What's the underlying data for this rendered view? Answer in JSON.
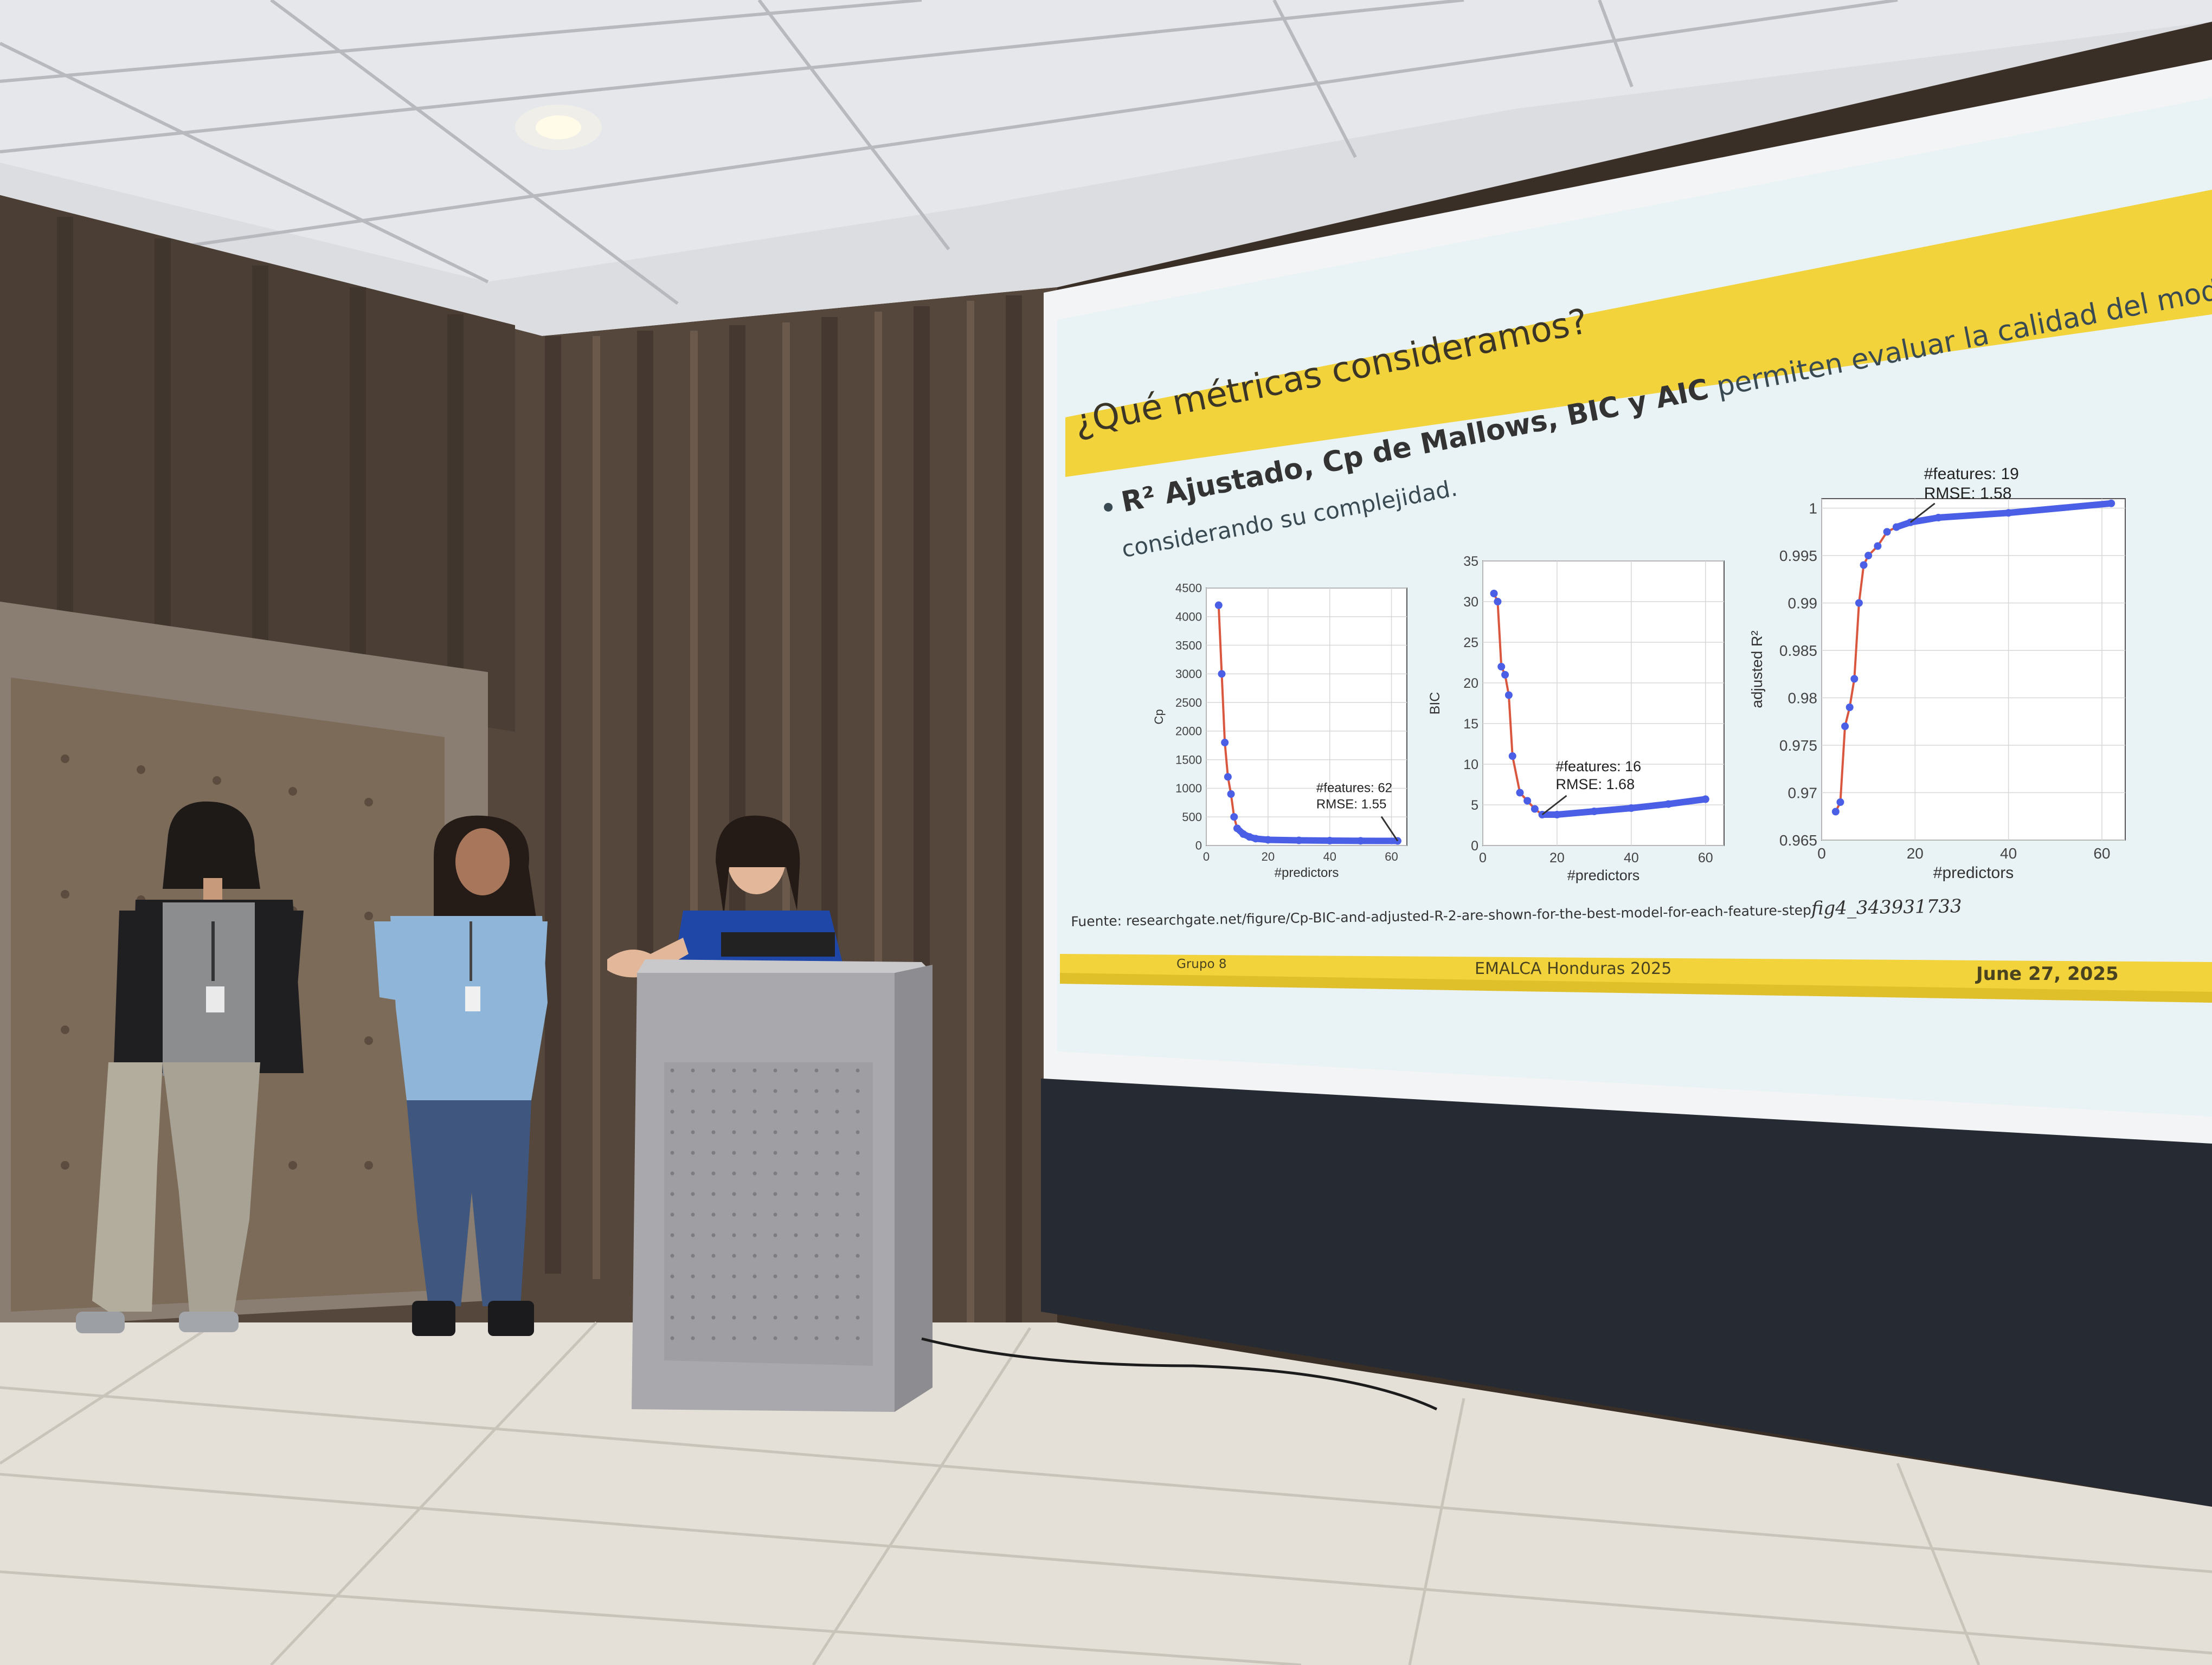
{
  "slide": {
    "title": "¿Qué métricas consideramos?",
    "bullet_bold": "R² Ajustado, Cp de Mallows, BIC y AIC",
    "bullet_rest": "permiten evaluar la calidad del modelo",
    "bullet_line2": "considerando su complejidad.",
    "source": "Fuente: researchgate.net/figure/Cp-BIC-and-adjusted-R-2-are-shown-for-the-best-model-for-each-feature-step",
    "source_suffix": "fig4_343931733",
    "footer_left": "Grupo 8",
    "footer_center": "EMALCA Honduras 2025",
    "footer_right": "June 27, 2025",
    "colors": {
      "header_yellow": "#f2d33b",
      "slide_bg": "#e6f0f2",
      "curve_red": "#d9573f",
      "marker_blue": "#4b5fe6"
    }
  },
  "chart_data": [
    {
      "type": "line",
      "xlabel": "#predictors",
      "ylabel": "Cp",
      "xticks": [
        "0",
        "20",
        "40",
        "60"
      ],
      "yticks": [
        "0",
        "500",
        "1000",
        "1500",
        "2000",
        "2500",
        "3000",
        "3500",
        "4000",
        "4500"
      ],
      "xlim": [
        0,
        65
      ],
      "ylim": [
        0,
        4500
      ],
      "x": [
        4,
        5,
        6,
        7,
        8,
        9,
        10,
        12,
        14,
        16,
        20,
        30,
        40,
        50,
        62
      ],
      "y": [
        4200,
        3000,
        1800,
        1200,
        900,
        500,
        300,
        200,
        150,
        120,
        100,
        90,
        85,
        82,
        80
      ],
      "annotation": {
        "lines": [
          "#features: 62",
          "RMSE: 1.55"
        ],
        "at": [
          62,
          80
        ]
      }
    },
    {
      "type": "line",
      "xlabel": "#predictors",
      "ylabel": "BIC",
      "xticks": [
        "0",
        "20",
        "40",
        "60"
      ],
      "yticks": [
        "0",
        "5",
        "10",
        "15",
        "20",
        "25",
        "30",
        "35"
      ],
      "xlim": [
        0,
        65
      ],
      "ylim": [
        0,
        35
      ],
      "x": [
        3,
        4,
        5,
        6,
        7,
        8,
        10,
        12,
        14,
        16,
        20,
        30,
        40,
        50,
        60
      ],
      "y": [
        31,
        30,
        22,
        21,
        18.5,
        11,
        6.5,
        5.5,
        4.5,
        3.8,
        3.8,
        4.2,
        4.6,
        5.1,
        5.7
      ],
      "annotation": {
        "lines": [
          "#features: 16",
          "RMSE: 1.68"
        ],
        "at": [
          16,
          3.8
        ]
      }
    },
    {
      "type": "line",
      "xlabel": "#predictors",
      "ylabel": "adjusted R²",
      "xticks": [
        "0",
        "20",
        "40",
        "60"
      ],
      "yticks": [
        "0.965",
        "0.97",
        "0.975",
        "0.98",
        "0.985",
        "0.99",
        "0.995",
        "1"
      ],
      "xlim": [
        0,
        65
      ],
      "ylim": [
        0.965,
        1.001
      ],
      "x": [
        3,
        4,
        5,
        6,
        7,
        8,
        9,
        10,
        12,
        14,
        16,
        19,
        25,
        40,
        62
      ],
      "y": [
        0.968,
        0.969,
        0.977,
        0.979,
        0.982,
        0.99,
        0.994,
        0.995,
        0.996,
        0.9975,
        0.998,
        0.9985,
        0.999,
        0.9995,
        1.0005
      ],
      "annotation": {
        "lines": [
          "#features: 19",
          "RMSE: 1.58"
        ],
        "at": [
          19,
          0.9985
        ]
      }
    }
  ],
  "alt": "Three presenters in front of a projected slide, one speaking at a grey lectern"
}
